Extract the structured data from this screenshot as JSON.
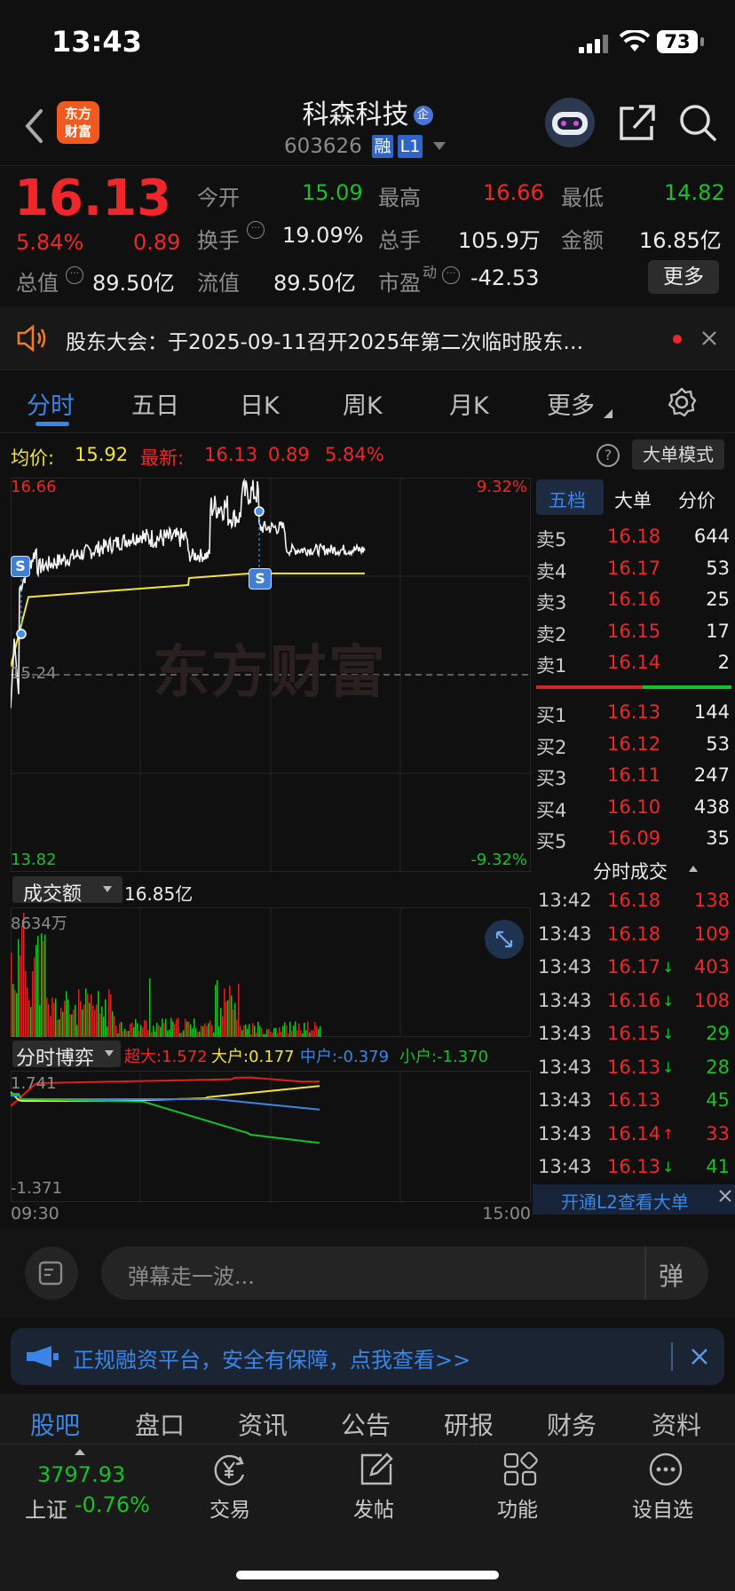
{
  "status": {
    "time": "13:43",
    "battery": "73"
  },
  "nav": {
    "logo_line1": "东方",
    "logo_line2": "财富",
    "stock_name": "科森科技",
    "enterprise_badge": "企",
    "code": "603626",
    "tag1": "融",
    "tag2": "L1"
  },
  "quote": {
    "price": "16.13",
    "pct": "5.84%",
    "chg": "0.89",
    "open_label": "今开",
    "open": "15.09",
    "high_label": "最高",
    "high": "16.66",
    "low_label": "最低",
    "low": "14.82",
    "turnover_label": "换手",
    "turnover": "19.09%",
    "vol_label": "总手",
    "vol": "105.9万",
    "amount_label": "金额",
    "amount": "16.85亿",
    "mcap_label": "总值",
    "mcap": "89.50亿",
    "float_label": "流值",
    "float": "89.50亿",
    "pe_label": "市盈",
    "pe_sup": "动",
    "pe": "-42.53",
    "more": "更多"
  },
  "notice": {
    "text": "股东大会：于2025-09-11召开2025年第二次临时股东…"
  },
  "tabs": [
    "分时",
    "五日",
    "日K",
    "周K",
    "月K",
    "更多"
  ],
  "chart": {
    "avg_label": "均价:",
    "avg": "15.92",
    "latest_label": "最新:",
    "latest": "16.13",
    "latest_chg": "0.89",
    "latest_pct": "5.84%",
    "big_mode": "大单模式",
    "y_high": "16.66",
    "y_mid": "15.24",
    "y_low": "13.82",
    "pct_high": "9.32%",
    "pct_low": "-9.32%",
    "watermark": "东方财富"
  },
  "volume": {
    "label": "成交额",
    "total": "16.85亿",
    "max": "8634万"
  },
  "boyi": {
    "label": "分时博弈",
    "chaoda": "超大:1.572",
    "dahu": "大户:0.177",
    "zhonghu": "中户:-0.379",
    "xiaohu": "小户:-1.370",
    "y_high": "1.741",
    "y_low": "-1.371",
    "t_start": "09:30",
    "t_end": "15:00"
  },
  "book": {
    "tabs": [
      "五档",
      "大单",
      "分价"
    ],
    "asks": [
      {
        "l": "卖5",
        "p": "16.18",
        "v": "644"
      },
      {
        "l": "卖4",
        "p": "16.17",
        "v": "53"
      },
      {
        "l": "卖3",
        "p": "16.16",
        "v": "25"
      },
      {
        "l": "卖2",
        "p": "16.15",
        "v": "17"
      },
      {
        "l": "卖1",
        "p": "16.14",
        "v": "2"
      }
    ],
    "bids": [
      {
        "l": "买1",
        "p": "16.13",
        "v": "144"
      },
      {
        "l": "买2",
        "p": "16.12",
        "v": "53"
      },
      {
        "l": "买3",
        "p": "16.11",
        "v": "247"
      },
      {
        "l": "买4",
        "p": "16.10",
        "v": "438"
      },
      {
        "l": "买5",
        "p": "16.09",
        "v": "35"
      }
    ]
  },
  "trades": {
    "title": "分时成交",
    "rows": [
      {
        "t": "13:42",
        "p": "16.18",
        "a": "",
        "v": "138",
        "c": "red"
      },
      {
        "t": "13:43",
        "p": "16.18",
        "a": "",
        "v": "109",
        "c": "red"
      },
      {
        "t": "13:43",
        "p": "16.17",
        "a": "↓",
        "v": "403",
        "c": "red"
      },
      {
        "t": "13:43",
        "p": "16.16",
        "a": "↓",
        "v": "108",
        "c": "red"
      },
      {
        "t": "13:43",
        "p": "16.15",
        "a": "↓",
        "v": "29",
        "c": "green"
      },
      {
        "t": "13:43",
        "p": "16.13",
        "a": "↓",
        "v": "28",
        "c": "green"
      },
      {
        "t": "13:43",
        "p": "16.13",
        "a": "",
        "v": "45",
        "c": "green"
      },
      {
        "t": "13:43",
        "p": "16.14",
        "a": "↑",
        "v": "33",
        "c": "red"
      },
      {
        "t": "13:43",
        "p": "16.13",
        "a": "↓",
        "v": "41",
        "c": "green"
      }
    ],
    "l2": "开通L2查看大单"
  },
  "danmu": {
    "placeholder": "弹幕走一波...",
    "send": "弹"
  },
  "promo": {
    "text": "正规融资平台，安全有保障，点我查看>>"
  },
  "subtabs": [
    "股吧",
    "盘口",
    "资讯",
    "公告",
    "研报",
    "财务",
    "资料"
  ],
  "bottom": {
    "index_value": "3797.93",
    "index_name": "上证",
    "index_pct": "-0.76%",
    "items": [
      "交易",
      "发帖",
      "功能",
      "设自选"
    ]
  }
}
